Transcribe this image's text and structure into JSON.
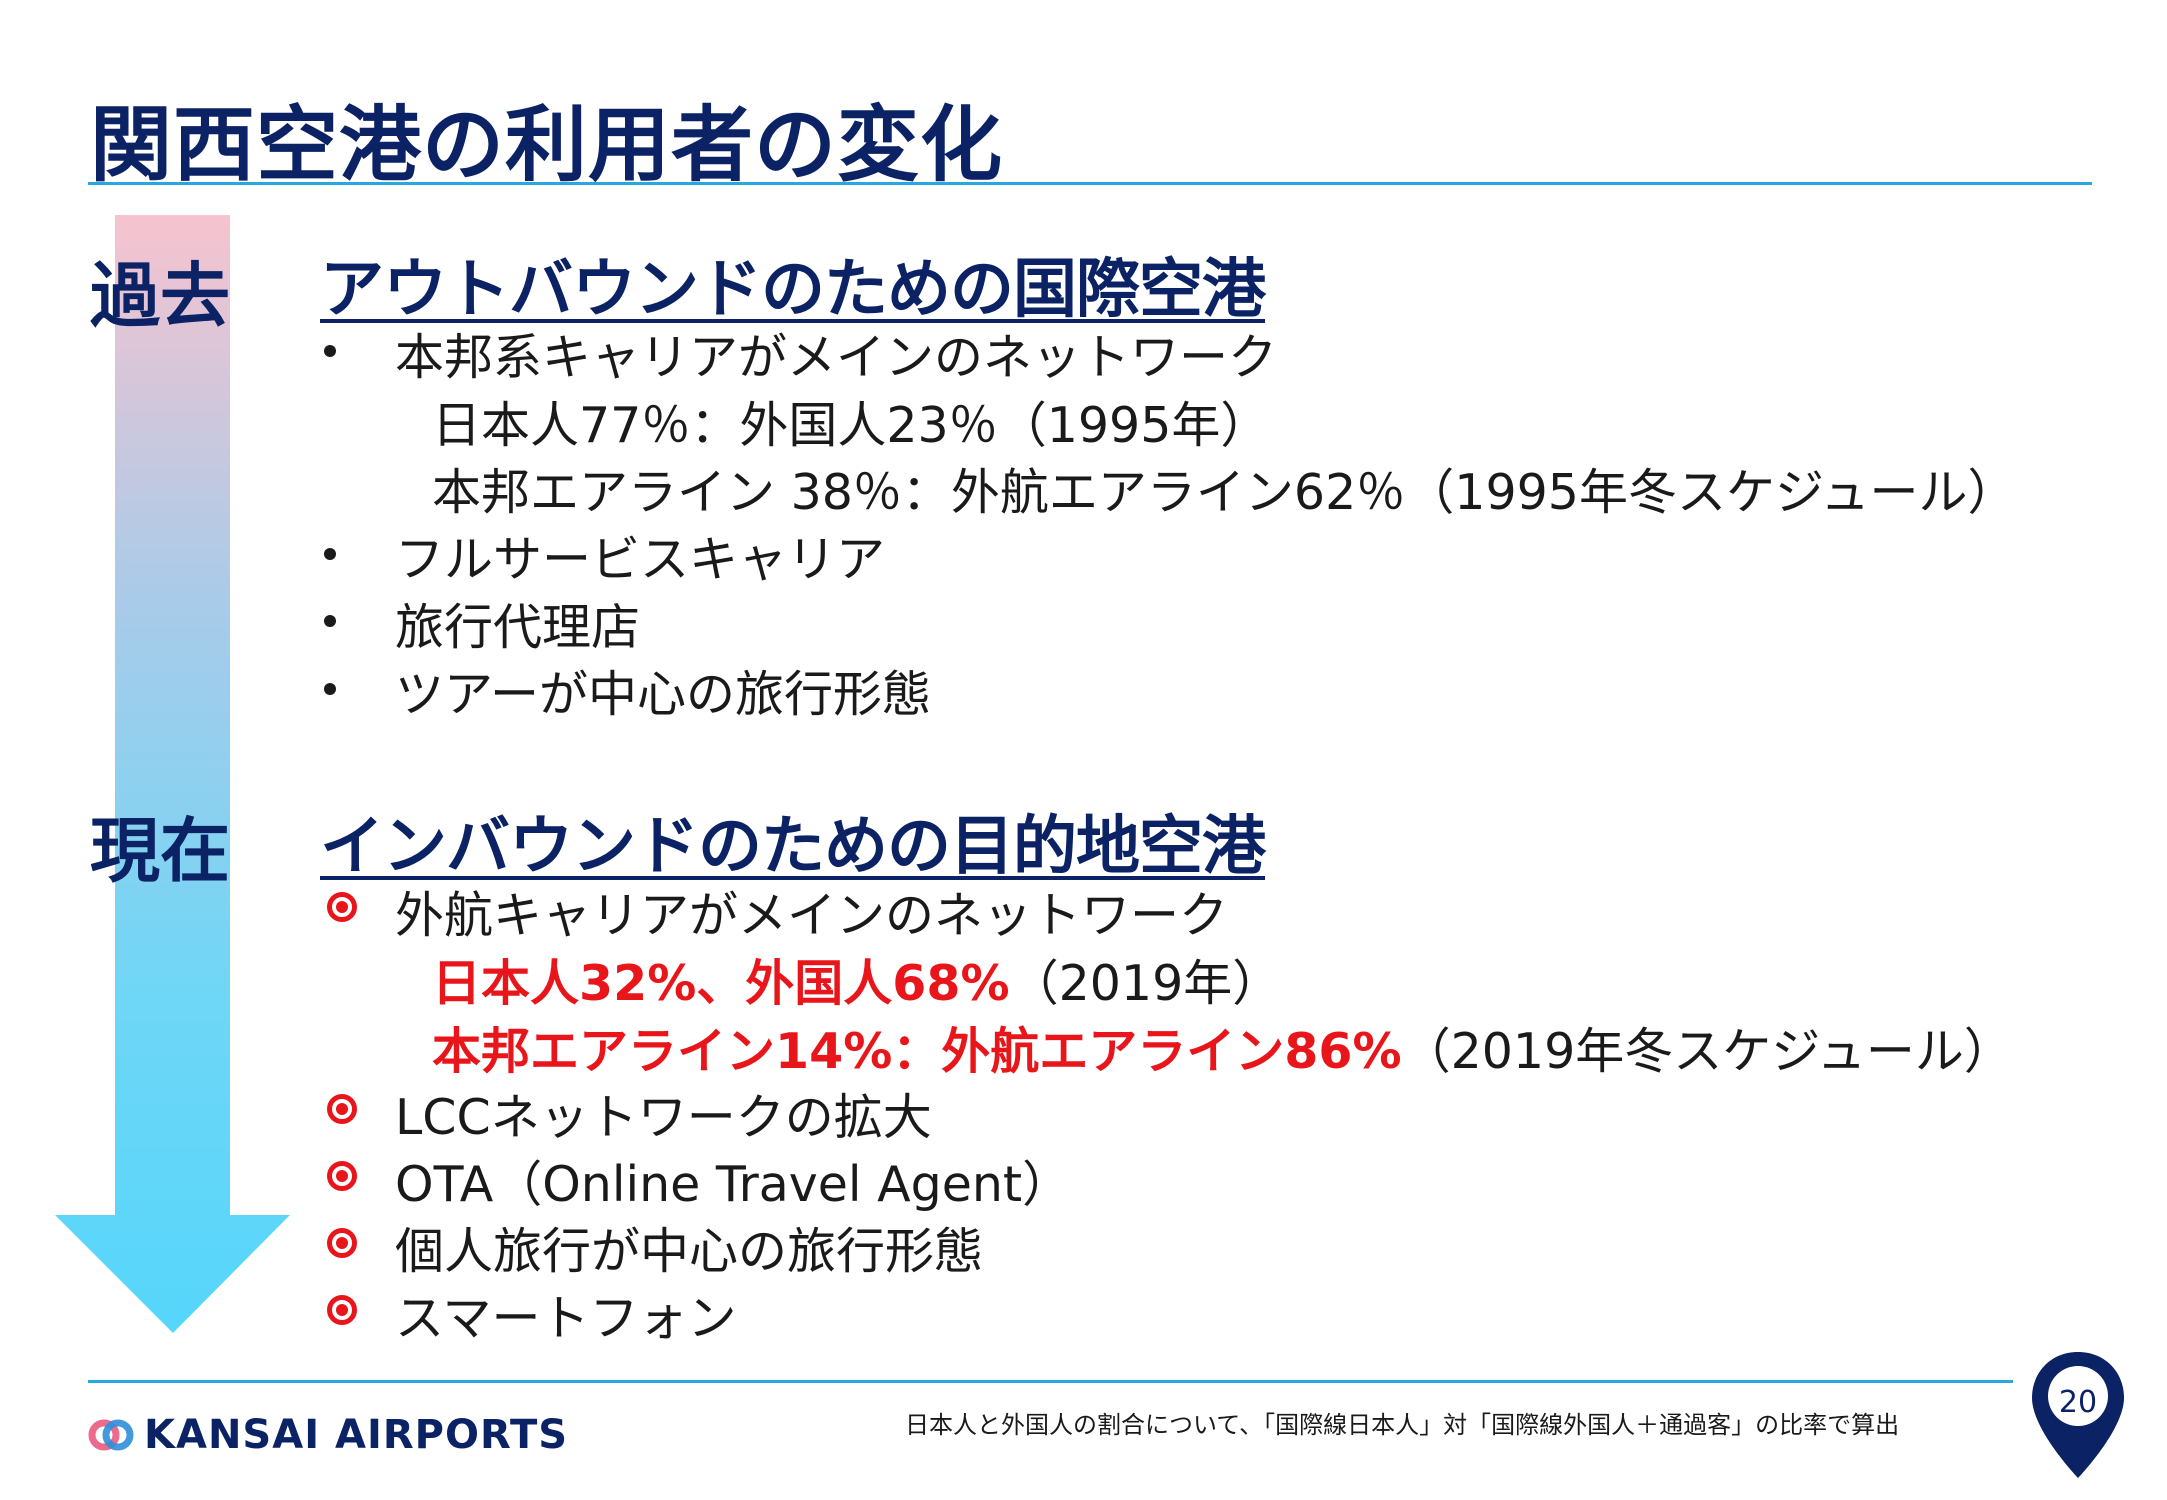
{
  "title": "関西空港の利用者の変化",
  "past": {
    "era_label": "過去",
    "heading": "アウトバウンドのための国際空港",
    "items": [
      "本邦系キャリアがメインのネットワーク",
      "日本人77％：外国人23％（1995年）",
      "本邦エアライン 38％：外航エアライン62％（1995年冬スケジュール）",
      "フルサービスキャリア",
      "旅行代理店",
      "ツアーが中心の旅行形態"
    ]
  },
  "present": {
    "era_label": "現在",
    "heading": "インバウンドのための目的地空港",
    "item1": "外航キャリアがメインのネットワーク",
    "sub1_red": "日本人32%、外国人68%",
    "sub1_rest": "（2019年）",
    "sub2_red": "本邦エアライン14%：外航エアライン86%",
    "sub2_rest": "（2019年冬スケジュール）",
    "items_after": [
      "LCCネットワークの拡大",
      "OTA（Online Travel Agent）",
      "個人旅行が中心の旅行形態",
      "スマートフォン"
    ]
  },
  "footer": {
    "logo_text": "KANSAI AIRPORTS",
    "note": "日本人と外国人の割合について、「国際線日本人」対「国際線外国人＋通過客」の比率で算出",
    "page_number": "20"
  },
  "colors": {
    "navy": "#0b2364",
    "accent_blue": "#29a8e0",
    "red": "#e8161b"
  }
}
